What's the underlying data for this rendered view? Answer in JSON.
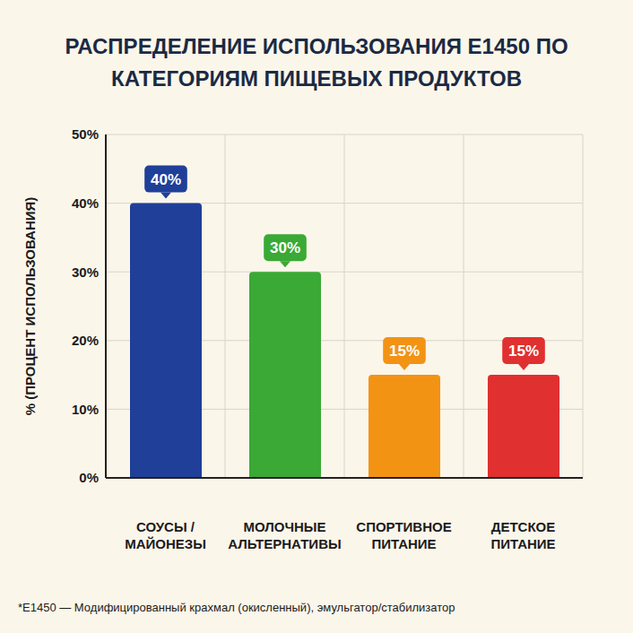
{
  "chart_data": {
    "type": "bar",
    "title": "РАСПРЕДЕЛЕНИЕ ИСПОЛЬЗОВАНИЯ E1450 ПО КАТЕГОРИЯМ ПИЩЕВЫХ ПРОДУКТОВ",
    "y_label": "% (ПРОЦЕНТ ИСПОЛЬЗОВАНИЯ)",
    "categories": [
      "СОУСЫ / МАЙОНЕЗЫ",
      "МОЛОЧНЫЕ АЛЬТЕРНАТИВЫ",
      "СПОРТИВНОЕ ПИТАНИЕ",
      "ДЕТСКОЕ ПИТАНИЕ"
    ],
    "values": [
      40,
      30,
      15,
      15
    ],
    "value_labels": [
      "40%",
      "30%",
      "15%",
      "15%"
    ],
    "colors": [
      "#1f3f99",
      "#3aa935",
      "#f39314",
      "#e03030"
    ],
    "ylim": [
      0,
      50
    ],
    "yticks": [
      {
        "value": 0,
        "label": "0%"
      },
      {
        "value": 10,
        "label": "10%"
      },
      {
        "value": 20,
        "label": "20%"
      },
      {
        "value": 30,
        "label": "30%"
      },
      {
        "value": 40,
        "label": "40%"
      },
      {
        "value": 50,
        "label": "50%"
      }
    ],
    "grid": true,
    "data_labels": true,
    "annotation": "*E1450 — Модифицированный крахмал (окисленный), эмульгатор/стабилизатор"
  }
}
